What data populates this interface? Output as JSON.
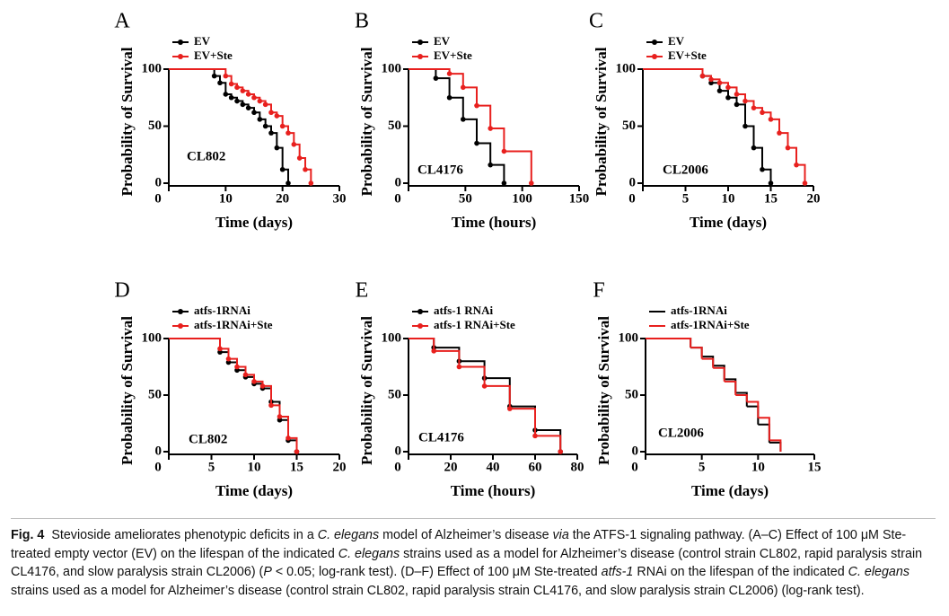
{
  "chart_data": [
    {
      "type": "step",
      "panel": "A",
      "annotation": "CL802",
      "xlabel": "Time (days)",
      "ylabel": "Probability of Survival",
      "xlim": [
        0,
        30
      ],
      "xticks": [
        0,
        10,
        20,
        30
      ],
      "ylim": [
        0,
        100
      ],
      "yticks": [
        0,
        50,
        100
      ],
      "series": [
        {
          "name": "EV",
          "color": "#000000",
          "marker": true,
          "x": [
            0,
            8,
            9,
            10,
            11,
            12,
            13,
            14,
            15,
            16,
            17,
            18,
            19,
            20,
            21
          ],
          "values": [
            100,
            94,
            88,
            78,
            75,
            72,
            69,
            66,
            62,
            56,
            50,
            44,
            31,
            12,
            0
          ]
        },
        {
          "name": "EV+Ste",
          "color": "#e8201e",
          "marker": true,
          "x": [
            0,
            10,
            11,
            12,
            13,
            14,
            15,
            16,
            17,
            18,
            19,
            20,
            21,
            22,
            23,
            24,
            25
          ],
          "values": [
            100,
            94,
            87,
            84,
            81,
            78,
            75,
            72,
            69,
            62,
            59,
            50,
            44,
            34,
            22,
            12,
            0
          ]
        }
      ]
    },
    {
      "type": "step",
      "panel": "B",
      "annotation": "CL4176",
      "xlabel": "Time (hours)",
      "ylabel": "Probability of Survival",
      "xlim": [
        0,
        150
      ],
      "xticks": [
        0,
        50,
        100,
        150
      ],
      "ylim": [
        0,
        100
      ],
      "yticks": [
        0,
        50,
        100
      ],
      "series": [
        {
          "name": "EV",
          "color": "#000000",
          "marker": true,
          "x": [
            0,
            24,
            36,
            48,
            60,
            72,
            84
          ],
          "values": [
            100,
            92,
            75,
            56,
            35,
            16,
            0
          ]
        },
        {
          "name": "EV+Ste",
          "color": "#e8201e",
          "marker": true,
          "x": [
            0,
            36,
            48,
            60,
            72,
            84,
            108
          ],
          "values": [
            100,
            96,
            84,
            68,
            48,
            28,
            0
          ]
        }
      ]
    },
    {
      "type": "step",
      "panel": "C",
      "annotation": "CL2006",
      "xlabel": "Time (days)",
      "ylabel": "Probability of Survival",
      "xlim": [
        0,
        20
      ],
      "xticks": [
        0,
        5,
        10,
        15,
        20
      ],
      "ylim": [
        0,
        100
      ],
      "yticks": [
        0,
        50,
        100
      ],
      "series": [
        {
          "name": "EV",
          "color": "#000000",
          "marker": true,
          "x": [
            0,
            7,
            8,
            9,
            10,
            11,
            12,
            13,
            14,
            15
          ],
          "values": [
            100,
            94,
            88,
            81,
            75,
            69,
            50,
            31,
            12,
            0
          ]
        },
        {
          "name": "EV+Ste",
          "color": "#e8201e",
          "marker": true,
          "x": [
            0,
            7,
            8,
            9,
            10,
            11,
            12,
            13,
            14,
            15,
            16,
            17,
            18,
            19
          ],
          "values": [
            100,
            94,
            91,
            88,
            84,
            78,
            72,
            66,
            62,
            56,
            44,
            31,
            16,
            0
          ]
        }
      ]
    },
    {
      "type": "step",
      "panel": "D",
      "annotation": "CL802",
      "xlabel": "Time (days)",
      "ylabel": "Probability of Survival",
      "xlim": [
        0,
        20
      ],
      "xticks": [
        0,
        5,
        10,
        15,
        20
      ],
      "ylim": [
        0,
        100
      ],
      "yticks": [
        0,
        50,
        100
      ],
      "series": [
        {
          "name": "atfs-1RNAi",
          "color": "#000000",
          "marker": true,
          "x": [
            0,
            6,
            7,
            8,
            9,
            10,
            11,
            12,
            13,
            14,
            15
          ],
          "values": [
            100,
            88,
            79,
            72,
            66,
            60,
            56,
            44,
            28,
            10,
            0
          ]
        },
        {
          "name": "atfs-1RNAi+Ste",
          "color": "#e8201e",
          "marker": true,
          "x": [
            0,
            6,
            7,
            8,
            9,
            10,
            11,
            12,
            13,
            14,
            15
          ],
          "values": [
            100,
            91,
            82,
            75,
            68,
            62,
            58,
            41,
            31,
            12,
            0
          ]
        }
      ]
    },
    {
      "type": "step",
      "panel": "E",
      "annotation": "CL4176",
      "xlabel": "Time (hours)",
      "ylabel": "Probability of Survival",
      "xlim": [
        0,
        80
      ],
      "xticks": [
        0,
        20,
        40,
        60,
        80
      ],
      "ylim": [
        0,
        100
      ],
      "yticks": [
        0,
        50,
        100
      ],
      "series": [
        {
          "name": "atfs-1 RNAi",
          "color": "#000000",
          "marker": true,
          "x": [
            0,
            12,
            24,
            36,
            48,
            60,
            72
          ],
          "values": [
            100,
            92,
            80,
            65,
            40,
            19,
            0
          ]
        },
        {
          "name": "atfs-1 RNAi+Ste",
          "color": "#e8201e",
          "marker": true,
          "x": [
            0,
            12,
            24,
            36,
            48,
            60,
            72
          ],
          "values": [
            100,
            89,
            75,
            58,
            38,
            14,
            0
          ]
        }
      ]
    },
    {
      "type": "step",
      "panel": "F",
      "annotation": "CL2006",
      "xlabel": "Time (days)",
      "ylabel": "Probability of Survival",
      "xlim": [
        0,
        15
      ],
      "xticks": [
        0,
        5,
        10,
        15
      ],
      "ylim": [
        0,
        100
      ],
      "yticks": [
        0,
        50,
        100
      ],
      "series": [
        {
          "name": "atfs-1RNAi",
          "color": "#000000",
          "marker": false,
          "x": [
            0,
            4,
            5,
            6,
            7,
            8,
            9,
            10,
            11,
            12
          ],
          "values": [
            100,
            92,
            84,
            76,
            64,
            52,
            40,
            24,
            8,
            0
          ]
        },
        {
          "name": "atfs-1RNAi+Ste",
          "color": "#e8201e",
          "marker": false,
          "x": [
            0,
            4,
            5,
            6,
            7,
            8,
            9,
            10,
            11,
            12
          ],
          "values": [
            100,
            92,
            82,
            74,
            62,
            50,
            44,
            30,
            10,
            0
          ]
        }
      ]
    }
  ],
  "caption": {
    "label": "Fig. 4",
    "parts": [
      {
        "text": "Stevioside ameliorates phenotypic deficits in a ",
        "italic": false
      },
      {
        "text": "C. elegans",
        "italic": true
      },
      {
        "text": " model of Alzheimer’s disease ",
        "italic": false
      },
      {
        "text": "via",
        "italic": true
      },
      {
        "text": " the ATFS-1 signaling pathway. (A–C) Effect of 100 μM Ste-treated empty vector (EV) on the lifespan of the indicated ",
        "italic": false
      },
      {
        "text": "C. elegans",
        "italic": true
      },
      {
        "text": " strains used as a model for Alzheimer’s disease (control strain CL802, rapid paralysis strain CL4176, and slow paralysis strain CL2006) (",
        "italic": false
      },
      {
        "text": "P",
        "italic": true
      },
      {
        "text": " < 0.05; log-rank test). (D–F) Effect of 100 μM Ste-treated ",
        "italic": false
      },
      {
        "text": "atfs-1",
        "italic": true
      },
      {
        "text": " RNAi on the lifespan of the indicated ",
        "italic": false
      },
      {
        "text": "C. elegans",
        "italic": true
      },
      {
        "text": " strains used as a model for Alzheimer’s disease (control strain CL802, rapid paralysis strain CL4176, and slow paralysis strain CL2006) (log-rank test).",
        "italic": false
      }
    ]
  }
}
